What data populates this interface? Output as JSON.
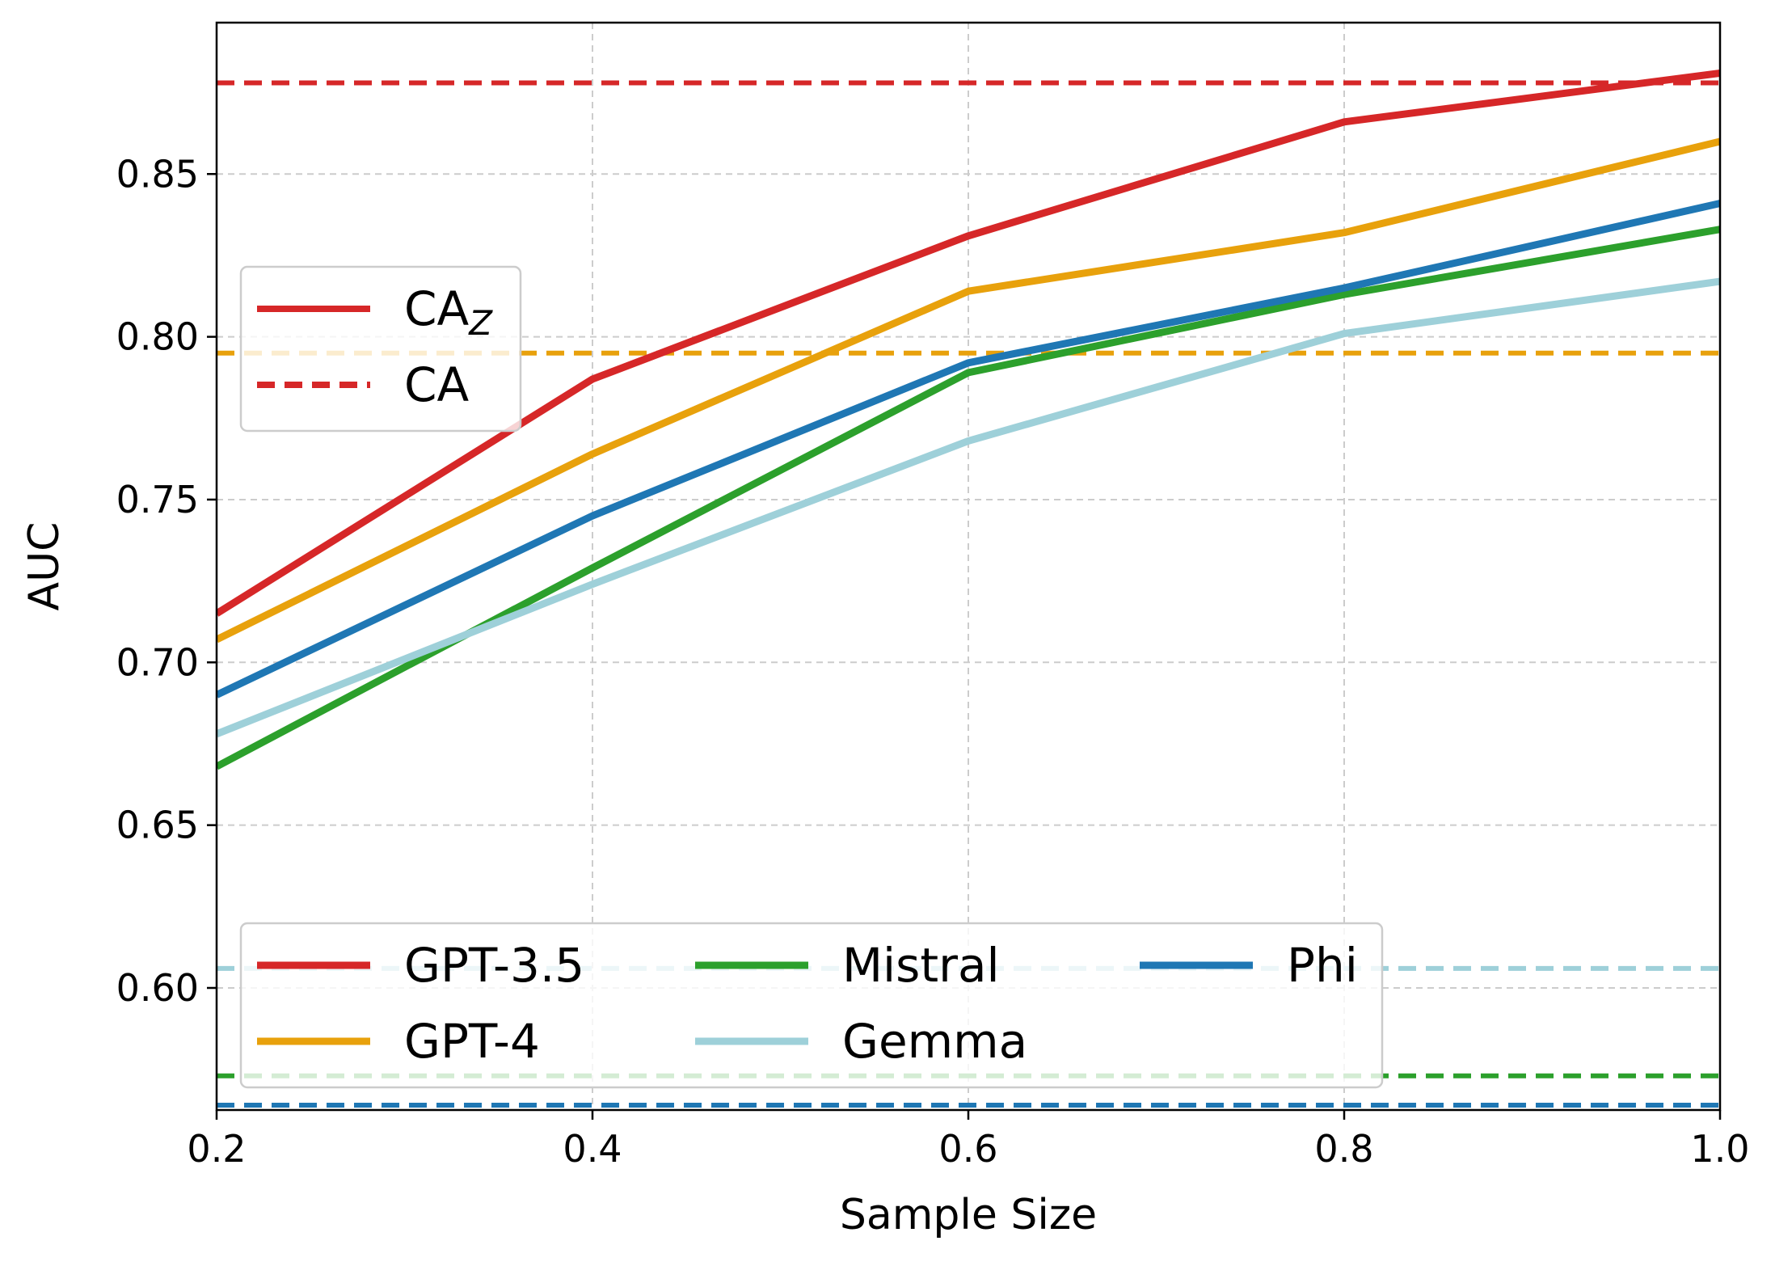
{
  "chart_data": {
    "type": "line",
    "title": "",
    "xlabel": "Sample Size",
    "ylabel": "AUC",
    "xlim": [
      0.2,
      1.0
    ],
    "ylim": [
      0.5625,
      0.8965
    ],
    "grid": true,
    "x": [
      0.2,
      0.4,
      0.6,
      0.8,
      1.0
    ],
    "x_ticks": [
      0.2,
      0.4,
      0.6,
      0.8,
      1.0
    ],
    "x_tick_labels": [
      "0.2",
      "0.4",
      "0.6",
      "0.8",
      "1.0"
    ],
    "y_ticks": [
      0.6,
      0.65,
      0.7,
      0.75,
      0.8,
      0.85
    ],
    "y_tick_labels": [
      "0.60",
      "0.65",
      "0.70",
      "0.75",
      "0.80",
      "0.85"
    ],
    "series": [
      {
        "name": "GPT-3.5",
        "key": "gpt35",
        "color": "#d62728",
        "values": [
          0.715,
          0.787,
          0.831,
          0.866,
          0.881
        ],
        "ca": 0.878
      },
      {
        "name": "GPT-4",
        "key": "gpt4",
        "color": "#e8a10c",
        "values": [
          0.707,
          0.764,
          0.814,
          0.832,
          0.86
        ],
        "ca": 0.795
      },
      {
        "name": "Mistral",
        "key": "mistral",
        "color": "#2ca02c",
        "values": [
          0.668,
          0.729,
          0.789,
          0.813,
          0.833
        ],
        "ca": 0.573
      },
      {
        "name": "Gemma",
        "key": "gemma",
        "color": "#9ed0d9",
        "values": [
          0.678,
          0.724,
          0.768,
          0.801,
          0.817
        ],
        "ca": 0.606
      },
      {
        "name": "Phi",
        "key": "phi",
        "color": "#1f77b4",
        "values": [
          0.69,
          0.745,
          0.792,
          0.815,
          0.841
        ],
        "ca": 0.564
      }
    ],
    "style_legend": {
      "position": "center-left",
      "entries": [
        {
          "label": "CA",
          "subscript": "Z",
          "style": "solid"
        },
        {
          "label": "CA",
          "subscript": "",
          "style": "dashed"
        }
      ]
    },
    "series_legend": {
      "position": "lower-center",
      "columns": 3
    }
  }
}
